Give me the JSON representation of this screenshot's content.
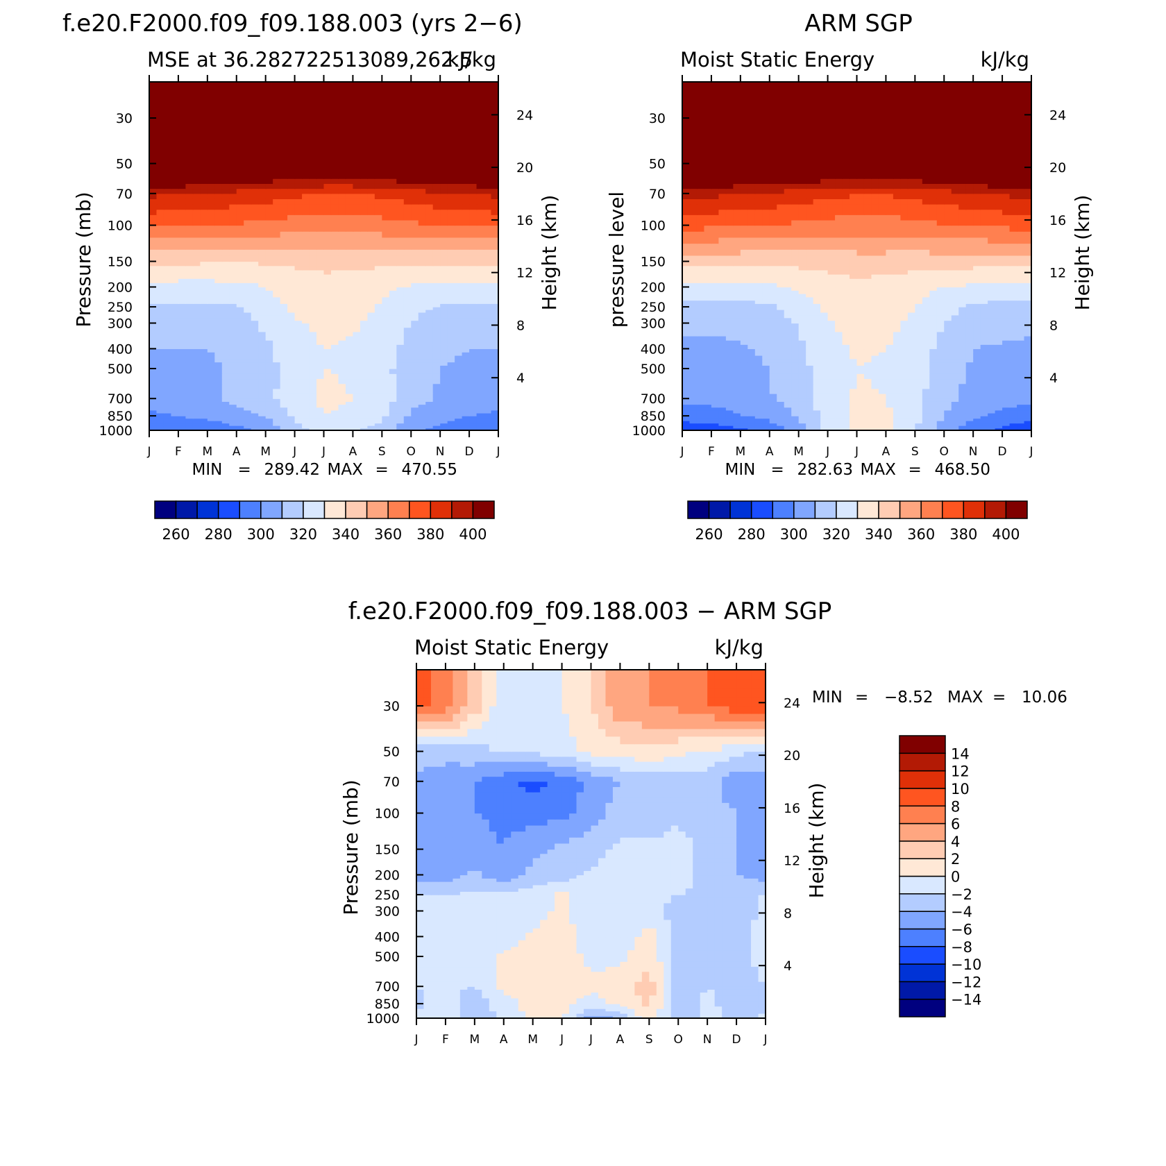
{
  "panels": [
    {
      "id": "model",
      "title": "f.e20.F2000.f09_f09.188.003 (yrs 2−6)",
      "subtitle_left": "MSE at 36.282722513089,262.5",
      "subtitle_right": "kJ/kg",
      "left_axis_label": "Pressure (mb)",
      "right_axis_label": "Height (km)",
      "min_text": "MIN",
      "min_value": "289.42",
      "max_text": "MAX",
      "max_value": "470.55",
      "colorbar": "abs"
    },
    {
      "id": "obs",
      "title": "ARM SGP",
      "subtitle_left": "Moist Static Energy",
      "subtitle_right": "kJ/kg",
      "left_axis_label": "pressure level",
      "right_axis_label": "Height (km)",
      "min_text": "MIN",
      "min_value": "282.63",
      "max_text": "MAX",
      "max_value": "468.50",
      "colorbar": "abs"
    },
    {
      "id": "diff",
      "title": "f.e20.F2000.f09_f09.188.003 − ARM SGP",
      "subtitle_left": "Moist Static Energy",
      "subtitle_right": "kJ/kg",
      "left_axis_label": "Pressure (mb)",
      "right_axis_label": "Height (km)",
      "min_text": "MIN",
      "min_value": "−8.52",
      "max_text": "MAX",
      "max_value": "10.06",
      "colorbar": "diff"
    }
  ],
  "pressure_ticks": [
    "30",
    "50",
    "70",
    "100",
    "150",
    "200",
    "250",
    "300",
    "400",
    "500",
    "700",
    "850",
    "1000"
  ],
  "height_ticks": [
    "24",
    "20",
    "16",
    "12",
    "8",
    "4"
  ],
  "month_ticks": [
    "J",
    "F",
    "M",
    "A",
    "M",
    "J",
    "J",
    "A",
    "S",
    "O",
    "N",
    "D",
    "J"
  ],
  "colorbars": {
    "abs": {
      "colors": [
        "#00007f",
        "#0019a8",
        "#0033d6",
        "#1a4dff",
        "#4d80ff",
        "#80a6ff",
        "#b3ccff",
        "#d9e8ff",
        "#ffe8d6",
        "#ffccb3",
        "#ffa680",
        "#ff8050",
        "#ff5520",
        "#e03008",
        "#b31a05",
        "#800000"
      ],
      "labels": [
        "260",
        "280",
        "300",
        "320",
        "340",
        "360",
        "380",
        "400"
      ]
    },
    "diff": {
      "colors": [
        "#00007f",
        "#0019a8",
        "#0033d6",
        "#1a4dff",
        "#4d80ff",
        "#80a6ff",
        "#b3ccff",
        "#d9e8ff",
        "#ffe8d6",
        "#ffccb3",
        "#ffa680",
        "#ff8050",
        "#ff5520",
        "#e03008",
        "#b31a05",
        "#800000"
      ],
      "labels": [
        "−14",
        "−12",
        "−10",
        "−8",
        "−6",
        "−4",
        "−2",
        "0",
        "2",
        "4",
        "6",
        "8",
        "10",
        "12",
        "14"
      ]
    }
  },
  "chart_data": [
    {
      "type": "heatmap",
      "panel": "model",
      "title": "f.e20.F2000.f09_f09.188.003 (yrs 2−6)",
      "subtitle": "MSE at 36.282722513089,262.5",
      "units": "kJ/kg",
      "x": [
        "J",
        "F",
        "M",
        "A",
        "M",
        "J",
        "J",
        "A",
        "S",
        "O",
        "N",
        "D",
        "J"
      ],
      "y_pressure_mb": [
        1000,
        850,
        700,
        500,
        400,
        300,
        250,
        200,
        150,
        100,
        70,
        50,
        30
      ],
      "ylabel": "Pressure (mb)",
      "ylabel_right": "Height (km)",
      "levels": [
        250,
        260,
        270,
        280,
        290,
        300,
        310,
        320,
        330,
        340,
        350,
        360,
        370,
        380,
        390,
        400
      ],
      "min": 289.42,
      "max": 470.55,
      "values": [
        [
          290,
          291,
          293,
          297,
          302,
          316,
          324,
          320,
          316,
          302,
          297,
          293,
          290
        ],
        [
          298,
          300,
          302,
          306,
          310,
          322,
          330,
          328,
          322,
          308,
          303,
          300,
          298
        ],
        [
          305,
          306,
          308,
          312,
          317,
          326,
          332,
          330,
          325,
          314,
          309,
          306,
          305
        ],
        [
          308,
          308,
          309,
          311,
          316,
          325,
          330,
          329,
          324,
          313,
          310,
          309,
          308
        ],
        [
          310,
          310,
          310,
          311,
          318,
          326,
          330,
          329,
          325,
          316,
          311,
          310,
          310
        ],
        [
          313,
          313,
          313,
          314,
          322,
          329,
          332,
          331,
          327,
          320,
          314,
          313,
          313
        ],
        [
          318,
          318,
          318,
          319,
          326,
          332,
          334,
          333,
          329,
          323,
          319,
          318,
          318
        ],
        [
          326,
          326,
          326,
          327,
          330,
          334,
          336,
          335,
          332,
          329,
          327,
          326,
          326
        ],
        [
          342,
          342,
          341,
          341,
          341,
          342,
          343,
          343,
          342,
          342,
          342,
          342,
          342
        ],
        [
          372,
          371,
          370,
          369,
          367,
          365,
          364,
          364,
          366,
          368,
          370,
          371,
          372
        ],
        [
          392,
          391,
          389,
          387,
          385,
          382,
          380,
          380,
          382,
          385,
          388,
          390,
          392
        ],
        [
          430,
          429,
          427,
          425,
          423,
          421,
          419,
          419,
          421,
          424,
          427,
          429,
          430
        ],
        [
          470,
          469,
          468,
          467,
          466,
          465,
          464,
          464,
          465,
          466,
          467,
          468,
          470
        ]
      ]
    },
    {
      "type": "heatmap",
      "panel": "obs",
      "title": "ARM SGP",
      "subtitle": "Moist Static Energy",
      "units": "kJ/kg",
      "x": [
        "J",
        "F",
        "M",
        "A",
        "M",
        "J",
        "J",
        "A",
        "S",
        "O",
        "N",
        "D",
        "J"
      ],
      "y_pressure_mb": [
        1000,
        850,
        700,
        500,
        400,
        300,
        250,
        200,
        150,
        100,
        70,
        50,
        30
      ],
      "ylabel": "pressure level",
      "ylabel_right": "Height (km)",
      "levels": [
        250,
        260,
        270,
        280,
        290,
        300,
        310,
        320,
        330,
        340,
        350,
        360,
        370,
        380,
        390,
        400
      ],
      "min": 282.63,
      "max": 468.5,
      "values": [
        [
          283,
          285,
          288,
          293,
          306,
          322,
          334,
          333,
          320,
          305,
          293,
          287,
          283
        ],
        [
          294,
          296,
          299,
          303,
          311,
          324,
          333,
          332,
          323,
          310,
          302,
          297,
          294
        ],
        [
          302,
          303,
          305,
          309,
          315,
          325,
          331,
          330,
          324,
          313,
          307,
          304,
          302
        ],
        [
          306,
          306,
          308,
          310,
          316,
          326,
          330,
          329,
          324,
          314,
          309,
          307,
          306
        ],
        [
          308,
          308,
          309,
          311,
          318,
          327,
          331,
          330,
          326,
          316,
          310,
          309,
          308
        ],
        [
          312,
          312,
          312,
          314,
          321,
          329,
          333,
          332,
          328,
          320,
          314,
          313,
          312
        ],
        [
          317,
          317,
          317,
          318,
          325,
          332,
          335,
          334,
          330,
          324,
          318,
          317,
          317
        ],
        [
          327,
          327,
          327,
          328,
          331,
          335,
          337,
          336,
          333,
          330,
          328,
          327,
          327
        ],
        [
          344,
          344,
          343,
          343,
          343,
          344,
          345,
          345,
          344,
          344,
          344,
          344,
          344
        ],
        [
          373,
          372,
          371,
          370,
          368,
          366,
          365,
          365,
          367,
          369,
          371,
          372,
          373
        ],
        [
          393,
          392,
          390,
          388,
          386,
          383,
          381,
          381,
          383,
          386,
          389,
          391,
          393
        ],
        [
          431,
          430,
          428,
          426,
          424,
          422,
          420,
          420,
          422,
          425,
          428,
          430,
          431
        ],
        [
          468,
          467,
          466,
          465,
          464,
          463,
          462,
          462,
          463,
          464,
          465,
          466,
          468
        ]
      ]
    },
    {
      "type": "heatmap",
      "panel": "diff",
      "title": "f.e20.F2000.f09_f09.188.003 − ARM SGP",
      "subtitle": "Moist Static Energy",
      "units": "kJ/kg",
      "x": [
        "J",
        "F",
        "M",
        "A",
        "M",
        "J",
        "J",
        "A",
        "S",
        "O",
        "N",
        "D",
        "J"
      ],
      "y_pressure_mb": [
        1000,
        850,
        700,
        500,
        400,
        300,
        250,
        200,
        150,
        100,
        70,
        50,
        30
      ],
      "ylabel": "Pressure (mb)",
      "ylabel_right": "Height (km)",
      "levels": [
        -16,
        -14,
        -12,
        -10,
        -8,
        -6,
        -4,
        -2,
        0,
        2,
        4,
        6,
        8,
        10,
        12,
        14
      ],
      "min": -8.52,
      "max": 10.06,
      "values": [
        [
          -1.5,
          -0.5,
          -3.0,
          -1.5,
          0.5,
          0.5,
          -5.0,
          -4.0,
          1.5,
          -4.0,
          -1.0,
          -3.0,
          -1.5
        ],
        [
          -2.5,
          -1.0,
          -3.5,
          -1.0,
          1.0,
          0.5,
          -1.0,
          0.5,
          2.5,
          -3.5,
          -1.5,
          -3.0,
          -2.5
        ],
        [
          -2.0,
          -1.5,
          -2.0,
          0.5,
          1.0,
          1.5,
          0.5,
          1.0,
          3.0,
          -3.0,
          -2.0,
          -2.5,
          -2.0
        ],
        [
          -1.5,
          -1.0,
          -1.5,
          0.5,
          0.5,
          1.0,
          -0.5,
          -0.5,
          1.5,
          -3.0,
          -3.0,
          -2.5,
          -1.5
        ],
        [
          -1.5,
          -1.5,
          -1.5,
          -1.0,
          0.5,
          1.0,
          -1.0,
          -1.5,
          1.0,
          -3.0,
          -3.0,
          -2.5,
          -1.5
        ],
        [
          -1.5,
          -1.5,
          -1.0,
          -1.0,
          -1.0,
          0.5,
          -1.5,
          -1.0,
          -1.0,
          -3.0,
          -3.5,
          -3.0,
          -1.5
        ],
        [
          -2.0,
          -2.0,
          -1.5,
          -1.5,
          -1.0,
          0.5,
          -1.0,
          -1.0,
          -1.5,
          -2.0,
          -2.5,
          -2.0,
          -2.0
        ],
        [
          -5.0,
          -5.0,
          -3.5,
          -5.5,
          -3.5,
          -3.0,
          -1.5,
          -1.0,
          -1.0,
          -0.5,
          -3.0,
          -4.0,
          -5.0
        ],
        [
          -5.5,
          -5.0,
          -5.0,
          -6.0,
          -4.5,
          -3.5,
          -3.0,
          -1.5,
          -1.5,
          -1.0,
          -3.0,
          -4.0,
          -5.5
        ],
        [
          -5.0,
          -5.5,
          -6.0,
          -6.5,
          -7.0,
          -6.5,
          -5.0,
          -3.0,
          -3.5,
          -2.5,
          -3.0,
          -4.0,
          -5.0
        ],
        [
          -4.5,
          -5.5,
          -6.0,
          -7.5,
          -8.5,
          -7.5,
          -5.5,
          -4.0,
          -3.5,
          -3.0,
          -3.0,
          -5.5,
          -4.5
        ],
        [
          -3.0,
          -3.0,
          -2.5,
          -2.0,
          -1.5,
          -1.0,
          0.5,
          1.0,
          1.5,
          0.5,
          -0.5,
          -1.0,
          -3.0
        ],
        [
          9.0,
          7.0,
          3.0,
          -1.5,
          -2.0,
          0.0,
          2.0,
          5.5,
          6.0,
          6.5,
          8.0,
          9.0,
          10.0
        ]
      ]
    }
  ]
}
